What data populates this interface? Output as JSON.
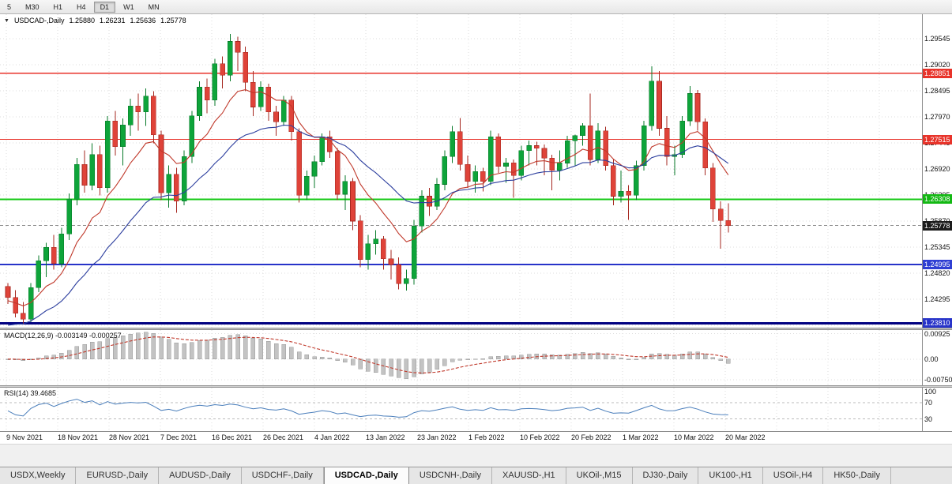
{
  "toolbar": {
    "timeframes": [
      "5",
      "M30",
      "H1",
      "H4",
      "D1",
      "W1",
      "MN"
    ],
    "active_timeframe": "D1"
  },
  "chart": {
    "collapse_icon": "▼",
    "symbol_title": "USDCAD-,Daily",
    "ohlc": {
      "open": "1.25880",
      "high": "1.26231",
      "low": "1.25636",
      "close": "1.25778"
    }
  },
  "chart_data": {
    "type": "candlestick",
    "symbol": "USDCAD-",
    "timeframe": "Daily",
    "price_range": [
      1.2372,
      1.3004
    ],
    "x_labels": [
      "9 Nov 2021",
      "18 Nov 2021",
      "28 Nov 2021",
      "7 Dec 2021",
      "16 Dec 2021",
      "26 Dec 2021",
      "4 Jan 2022",
      "13 Jan 2022",
      "23 Jan 2022",
      "1 Feb 2022",
      "10 Feb 2022",
      "20 Feb 2022",
      "1 Mar 2022",
      "10 Mar 2022",
      "20 Mar 2022"
    ],
    "y_ticks": [
      {
        "label": "1.29545",
        "value": 1.29545
      },
      {
        "label": "1.29020",
        "value": 1.2902
      },
      {
        "label": "1.28495",
        "value": 1.28495
      },
      {
        "label": "1.27970",
        "value": 1.2797
      },
      {
        "label": "1.27445",
        "value": 1.27445
      },
      {
        "label": "1.26920",
        "value": 1.2692
      },
      {
        "label": "1.26395",
        "value": 1.26395
      },
      {
        "label": "1.25870",
        "value": 1.2587
      },
      {
        "label": "1.25345",
        "value": 1.25345
      },
      {
        "label": "1.24820",
        "value": 1.2482
      },
      {
        "label": "1.24295",
        "value": 1.24295
      },
      {
        "label": "1.23770",
        "value": 1.2377
      }
    ],
    "levels": [
      {
        "price": 1.28851,
        "label": "1.28851",
        "color": "#e8332a",
        "line_color": "#e8332a",
        "width": 1.2,
        "style": "solid"
      },
      {
        "price": 1.27515,
        "label": "1.27515",
        "color": "#e8332a",
        "line_color": "#e8332a",
        "width": 1.2,
        "style": "solid"
      },
      {
        "price": 1.26308,
        "label": "1.26308",
        "color": "#13b813",
        "line_color": "#16c816",
        "width": 2,
        "style": "solid"
      },
      {
        "price": 1.25778,
        "label": "1.25778",
        "color": "#1c1c1c",
        "line_color": "#8a8a8a",
        "width": 1,
        "style": "dash"
      },
      {
        "price": 1.24995,
        "label": "1.24995",
        "color": "#2f3fd3",
        "line_color": "#2733c9",
        "width": 2,
        "style": "solid"
      },
      {
        "price": 1.2381,
        "label": "1.23810",
        "color": "#2733c9",
        "line_color": "#000080",
        "width": 3,
        "style": "solid"
      }
    ],
    "candles": [
      [
        1.2455,
        1.2462,
        1.242,
        1.2433
      ],
      [
        1.2433,
        1.2448,
        1.2393,
        1.2401
      ],
      [
        1.2401,
        1.2424,
        1.2378,
        1.2389
      ],
      [
        1.2389,
        1.2462,
        1.2383,
        1.2453
      ],
      [
        1.2453,
        1.2518,
        1.2444,
        1.2507
      ],
      [
        1.2507,
        1.2543,
        1.2474,
        1.2534
      ],
      [
        1.2534,
        1.2559,
        1.2489,
        1.2501
      ],
      [
        1.2501,
        1.2573,
        1.2494,
        1.2561
      ],
      [
        1.2561,
        1.2643,
        1.2549,
        1.2631
      ],
      [
        1.2631,
        1.2714,
        1.2619,
        1.2701
      ],
      [
        1.2701,
        1.2729,
        1.2644,
        1.2659
      ],
      [
        1.2659,
        1.2744,
        1.2649,
        1.2721
      ],
      [
        1.2721,
        1.2739,
        1.2639,
        1.2654
      ],
      [
        1.2654,
        1.2799,
        1.2644,
        1.2789
      ],
      [
        1.2789,
        1.2809,
        1.2719,
        1.2737
      ],
      [
        1.2737,
        1.2794,
        1.2699,
        1.2781
      ],
      [
        1.2781,
        1.2834,
        1.2759,
        1.2819
      ],
      [
        1.2819,
        1.2844,
        1.2769,
        1.2807
      ],
      [
        1.2807,
        1.2854,
        1.2779,
        1.2839
      ],
      [
        1.2839,
        1.2849,
        1.2744,
        1.2761
      ],
      [
        1.2761,
        1.2769,
        1.2629,
        1.2644
      ],
      [
        1.2644,
        1.2699,
        1.2614,
        1.2681
      ],
      [
        1.2681,
        1.2694,
        1.2604,
        1.2627
      ],
      [
        1.2627,
        1.2729,
        1.2619,
        1.2717
      ],
      [
        1.2717,
        1.2809,
        1.2704,
        1.2799
      ],
      [
        1.2799,
        1.2869,
        1.2789,
        1.2857
      ],
      [
        1.2857,
        1.2874,
        1.2804,
        1.2831
      ],
      [
        1.2831,
        1.2914,
        1.2819,
        1.2904
      ],
      [
        1.2904,
        1.2919,
        1.2854,
        1.2881
      ],
      [
        1.2881,
        1.2964,
        1.2869,
        1.2949
      ],
      [
        1.2949,
        1.2959,
        1.2889,
        1.2927
      ],
      [
        1.2927,
        1.2939,
        1.2849,
        1.2867
      ],
      [
        1.2867,
        1.2889,
        1.2799,
        1.2817
      ],
      [
        1.2817,
        1.2869,
        1.2809,
        1.2857
      ],
      [
        1.2857,
        1.2864,
        1.2789,
        1.2807
      ],
      [
        1.2807,
        1.2819,
        1.2759,
        1.2787
      ],
      [
        1.2787,
        1.2839,
        1.2779,
        1.2831
      ],
      [
        1.2831,
        1.2839,
        1.2749,
        1.2767
      ],
      [
        1.2767,
        1.2774,
        1.2624,
        1.2639
      ],
      [
        1.2639,
        1.2689,
        1.2629,
        1.2677
      ],
      [
        1.2677,
        1.2719,
        1.2654,
        1.2707
      ],
      [
        1.2707,
        1.2764,
        1.2699,
        1.2757
      ],
      [
        1.2757,
        1.2769,
        1.2714,
        1.2727
      ],
      [
        1.2727,
        1.2734,
        1.2629,
        1.2641
      ],
      [
        1.2641,
        1.2679,
        1.2609,
        1.2667
      ],
      [
        1.2667,
        1.2674,
        1.2569,
        1.2587
      ],
      [
        1.2587,
        1.2599,
        1.2494,
        1.2509
      ],
      [
        1.2509,
        1.2559,
        1.2489,
        1.2541
      ],
      [
        1.2541,
        1.2569,
        1.2519,
        1.2551
      ],
      [
        1.2551,
        1.2557,
        1.2489,
        1.2511
      ],
      [
        1.2511,
        1.2529,
        1.2469,
        1.2499
      ],
      [
        1.2499,
        1.2514,
        1.2449,
        1.2461
      ],
      [
        1.2461,
        1.2489,
        1.2447,
        1.2471
      ],
      [
        1.2471,
        1.2589,
        1.2459,
        1.2577
      ],
      [
        1.2577,
        1.2649,
        1.2564,
        1.2637
      ],
      [
        1.2637,
        1.2654,
        1.2597,
        1.2617
      ],
      [
        1.2617,
        1.2674,
        1.2609,
        1.2661
      ],
      [
        1.2661,
        1.2729,
        1.2649,
        1.2717
      ],
      [
        1.2717,
        1.2779,
        1.2704,
        1.2767
      ],
      [
        1.2767,
        1.2795,
        1.2689,
        1.2701
      ],
      [
        1.2701,
        1.2719,
        1.2654,
        1.2667
      ],
      [
        1.2667,
        1.2699,
        1.2644,
        1.2687
      ],
      [
        1.2687,
        1.2694,
        1.2647,
        1.2667
      ],
      [
        1.2667,
        1.2769,
        1.2659,
        1.2757
      ],
      [
        1.2757,
        1.2764,
        1.2684,
        1.2697
      ],
      [
        1.2697,
        1.2714,
        1.2664,
        1.2704
      ],
      [
        1.2704,
        1.2711,
        1.2634,
        1.2679
      ],
      [
        1.2679,
        1.2739,
        1.2669,
        1.2729
      ],
      [
        1.2729,
        1.2749,
        1.2699,
        1.2739
      ],
      [
        1.2739,
        1.2747,
        1.2699,
        1.2734
      ],
      [
        1.2734,
        1.2741,
        1.2679,
        1.2714
      ],
      [
        1.2714,
        1.2721,
        1.2649,
        1.2689
      ],
      [
        1.2689,
        1.2729,
        1.2669,
        1.2704
      ],
      [
        1.2704,
        1.2759,
        1.2694,
        1.2749
      ],
      [
        1.2749,
        1.2761,
        1.2699,
        1.2759
      ],
      [
        1.2759,
        1.2784,
        1.2739,
        1.2779
      ],
      [
        1.2779,
        1.2844,
        1.2699,
        1.2711
      ],
      [
        1.2711,
        1.2784,
        1.2704,
        1.2769
      ],
      [
        1.2769,
        1.2777,
        1.2689,
        1.2699
      ],
      [
        1.2699,
        1.2711,
        1.2619,
        1.2637
      ],
      [
        1.2637,
        1.2689,
        1.2624,
        1.2647
      ],
      [
        1.2647,
        1.2659,
        1.2589,
        1.2639
      ],
      [
        1.2639,
        1.2709,
        1.2629,
        1.2699
      ],
      [
        1.2699,
        1.2789,
        1.2689,
        1.2779
      ],
      [
        1.2779,
        1.2899,
        1.2769,
        1.2869
      ],
      [
        1.2869,
        1.2889,
        1.2759,
        1.2774
      ],
      [
        1.2774,
        1.2799,
        1.2699,
        1.2717
      ],
      [
        1.2717,
        1.2739,
        1.2679,
        1.2721
      ],
      [
        1.2721,
        1.2799,
        1.2714,
        1.2789
      ],
      [
        1.2789,
        1.2859,
        1.2779,
        1.2844
      ],
      [
        1.2844,
        1.2851,
        1.2769,
        1.2787
      ],
      [
        1.2787,
        1.2794,
        1.2679,
        1.2694
      ],
      [
        1.2694,
        1.2704,
        1.2585,
        1.2611
      ],
      [
        1.2611,
        1.2627,
        1.2531,
        1.2588
      ],
      [
        1.2588,
        1.26231,
        1.25636,
        1.25778
      ]
    ],
    "moving_averages": {
      "fast": {
        "period": 10,
        "seed": 1.2425,
        "color": "#c0392b"
      },
      "slow": {
        "period": 24,
        "seed": 1.2372,
        "color": "#2c3e9e"
      }
    },
    "macd": {
      "label": "MACD(12,26,9) -0.003149 -0.000257",
      "params": [
        12,
        26,
        9
      ],
      "value": -0.003149,
      "signal": -0.000257,
      "range": [
        -0.0095,
        0.0105
      ],
      "ticks": [
        {
          "label": "0.00925",
          "value": 0.00925
        },
        {
          "label": "0.00",
          "value": 0
        },
        {
          "label": "-0.00750",
          "value": -0.0075
        }
      ]
    },
    "rsi": {
      "label": "RSI(14) 39.4685",
      "period": 14,
      "value": 39.4685,
      "range": [
        0,
        107
      ],
      "ticks": [
        {
          "label": "100",
          "value": 100
        },
        {
          "label": "70",
          "value": 70
        },
        {
          "label": "30",
          "value": 30
        }
      ],
      "level_lines": [
        70,
        30
      ]
    },
    "colors": {
      "up": "#0ea43a",
      "up_stroke": "#077a28",
      "down": "#df4339",
      "down_stroke": "#a5271f",
      "grid": "#dcdcdc",
      "macd_hist": "#c3c3c3",
      "macd_hist_stroke": "#9a9a9a",
      "macd_signal": "#c0392b",
      "rsi_line": "#4a7ebb",
      "rsi_levels": "#bbbbbb"
    }
  },
  "tabs": {
    "items": [
      {
        "label": "USDX,Weekly",
        "active": false
      },
      {
        "label": "EURUSD-,Daily",
        "active": false
      },
      {
        "label": "AUDUSD-,Daily",
        "active": false
      },
      {
        "label": "USDCHF-,Daily",
        "active": false
      },
      {
        "label": "USDCAD-,Daily",
        "active": true
      },
      {
        "label": "USDCNH-,Daily",
        "active": false
      },
      {
        "label": "XAUUSD-,H1",
        "active": false
      },
      {
        "label": "UKOil-,M15",
        "active": false
      },
      {
        "label": "DJ30-,Daily",
        "active": false
      },
      {
        "label": "UK100-,H1",
        "active": false
      },
      {
        "label": "USOil-,H4",
        "active": false
      },
      {
        "label": "HK50-,Daily",
        "active": false
      }
    ]
  }
}
